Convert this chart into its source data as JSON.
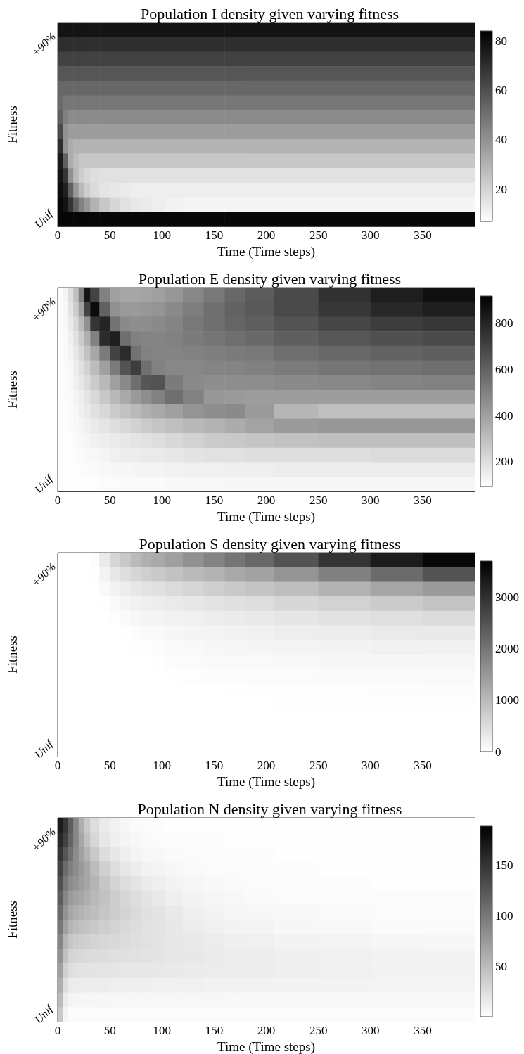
{
  "chart_data": [
    {
      "type": "heatmap",
      "title": "Population I density given varying fitness",
      "xlabel": "Time (Time steps)",
      "ylabel": "Fitness",
      "xlim": [
        0,
        400
      ],
      "xticks": [
        0,
        50,
        100,
        150,
        200,
        250,
        300,
        350
      ],
      "x": [
        2.5,
        7.5,
        12.5,
        17.5,
        22.5,
        27.5,
        35,
        45,
        55,
        65,
        75,
        85,
        95,
        110,
        130,
        150,
        170,
        190,
        225,
        275,
        325,
        375
      ],
      "y_categories": [
        null,
        "+90%",
        null,
        null,
        null,
        null,
        null,
        null,
        null,
        null,
        null,
        null,
        null,
        "Unif"
      ],
      "clim": [
        7,
        84
      ],
      "cticks": [
        20,
        40,
        60,
        80
      ],
      "cells": [
        [
          78,
          78,
          78,
          78,
          78,
          78,
          78,
          78,
          78,
          78,
          78,
          78,
          78,
          78,
          78,
          78,
          78,
          78,
          78,
          78,
          78,
          78
        ],
        [
          70,
          70,
          70,
          70,
          70,
          70,
          70,
          70,
          70,
          70,
          70,
          70,
          70,
          70,
          70,
          70,
          70,
          70,
          70,
          70,
          70,
          70
        ],
        [
          64,
          64,
          64,
          64,
          64,
          64,
          64,
          64,
          64,
          64,
          64,
          64,
          64,
          64,
          64,
          64,
          64,
          64,
          64,
          64,
          64,
          64
        ],
        [
          58,
          58,
          58,
          58,
          58,
          58,
          58,
          58,
          58,
          58,
          58,
          58,
          58,
          58,
          58,
          58,
          58,
          58,
          58,
          58,
          58,
          58
        ],
        [
          53,
          53,
          53,
          53,
          53,
          53,
          53,
          53,
          53,
          53,
          53,
          53,
          53,
          53,
          53,
          53,
          53,
          53,
          53,
          53,
          53,
          53
        ],
        [
          52,
          48,
          48,
          48,
          48,
          48,
          48,
          48,
          48,
          48,
          48,
          48,
          48,
          48,
          48,
          48,
          48,
          48,
          48,
          48,
          48,
          48
        ],
        [
          55,
          45,
          42,
          42,
          42,
          42,
          42,
          42,
          42,
          42,
          42,
          42,
          42,
          42,
          42,
          42,
          42,
          42,
          42,
          42,
          42,
          42
        ],
        [
          62,
          40,
          37,
          37,
          37,
          37,
          37,
          37,
          37,
          37,
          37,
          37,
          37,
          37,
          37,
          37,
          37,
          37,
          37,
          37,
          37,
          37
        ],
        [
          70,
          40,
          32,
          30,
          30,
          30,
          30,
          30,
          30,
          30,
          30,
          30,
          30,
          30,
          30,
          30,
          30,
          30,
          30,
          30,
          30,
          30
        ],
        [
          76,
          55,
          32,
          27,
          24,
          24,
          24,
          24,
          24,
          24,
          24,
          24,
          24,
          24,
          24,
          24,
          24,
          24,
          24,
          24,
          24,
          24
        ],
        [
          78,
          68,
          40,
          28,
          22,
          19,
          17,
          16,
          16,
          16,
          16,
          16,
          16,
          16,
          16,
          16,
          16,
          16,
          16,
          16,
          16,
          16
        ],
        [
          80,
          74,
          55,
          38,
          28,
          22,
          18,
          15,
          14,
          13,
          12,
          12,
          12,
          12,
          12,
          12,
          12,
          12,
          12,
          12,
          12,
          12
        ],
        [
          82,
          78,
          68,
          55,
          45,
          38,
          30,
          24,
          19,
          16,
          14,
          13,
          12,
          11,
          10,
          10,
          10,
          10,
          10,
          10,
          10,
          10
        ],
        [
          82,
          82,
          82,
          82,
          82,
          82,
          82,
          82,
          82,
          82,
          82,
          82,
          82,
          82,
          82,
          82,
          82,
          82,
          82,
          82,
          82,
          82
        ]
      ]
    },
    {
      "type": "heatmap",
      "title": "Population E density given varying fitness",
      "xlabel": "Time (Time steps)",
      "ylabel": "Fitness",
      "xlim": [
        0,
        400
      ],
      "xticks": [
        0,
        50,
        100,
        150,
        200,
        250,
        300,
        350
      ],
      "x": [
        2.5,
        7.5,
        12.5,
        17.5,
        22.5,
        27.5,
        35,
        45,
        55,
        65,
        75,
        85,
        95,
        110,
        130,
        150,
        170,
        190,
        225,
        275,
        325,
        375
      ],
      "y_categories": [
        null,
        "+90%",
        null,
        null,
        null,
        null,
        null,
        null,
        null,
        null,
        null,
        null,
        null,
        "Unif"
      ],
      "clim": [
        93,
        918
      ],
      "cticks": [
        200,
        400,
        600,
        800
      ],
      "cells": [
        [
          100,
          130,
          200,
          300,
          500,
          850,
          700,
          500,
          400,
          380,
          380,
          390,
          400,
          430,
          480,
          530,
          580,
          620,
          680,
          760,
          820,
          870
        ],
        [
          100,
          120,
          180,
          260,
          400,
          700,
          880,
          600,
          450,
          420,
          420,
          430,
          440,
          470,
          510,
          560,
          600,
          630,
          680,
          740,
          790,
          820
        ],
        [
          100,
          115,
          160,
          220,
          320,
          450,
          750,
          800,
          550,
          470,
          460,
          460,
          470,
          490,
          530,
          560,
          590,
          610,
          650,
          690,
          720,
          740
        ],
        [
          100,
          110,
          140,
          190,
          260,
          350,
          500,
          780,
          820,
          560,
          500,
          490,
          490,
          500,
          520,
          540,
          560,
          580,
          610,
          640,
          660,
          680
        ],
        [
          100,
          110,
          130,
          170,
          220,
          290,
          380,
          520,
          700,
          780,
          550,
          500,
          490,
          490,
          500,
          510,
          520,
          530,
          560,
          580,
          600,
          610
        ],
        [
          100,
          105,
          120,
          150,
          190,
          240,
          310,
          400,
          520,
          650,
          720,
          560,
          500,
          480,
          480,
          490,
          490,
          500,
          520,
          540,
          550,
          560
        ],
        [
          100,
          105,
          115,
          140,
          170,
          210,
          260,
          320,
          400,
          470,
          560,
          640,
          650,
          520,
          470,
          460,
          460,
          460,
          470,
          480,
          490,
          500
        ],
        [
          100,
          105,
          110,
          130,
          150,
          180,
          220,
          270,
          320,
          370,
          420,
          460,
          500,
          560,
          500,
          430,
          420,
          410,
          410,
          410,
          410,
          410
        ],
        [
          100,
          100,
          110,
          120,
          140,
          160,
          190,
          220,
          260,
          290,
          320,
          350,
          370,
          400,
          440,
          460,
          470,
          420,
          330,
          300,
          300,
          300
        ],
        [
          100,
          100,
          105,
          115,
          125,
          140,
          160,
          180,
          200,
          220,
          240,
          260,
          280,
          300,
          320,
          340,
          360,
          390,
          420,
          430,
          430,
          430
        ],
        [
          100,
          100,
          100,
          110,
          115,
          125,
          140,
          150,
          160,
          170,
          180,
          190,
          200,
          220,
          240,
          260,
          270,
          280,
          290,
          300,
          300,
          300
        ],
        [
          100,
          100,
          100,
          105,
          110,
          115,
          120,
          130,
          140,
          150,
          150,
          160,
          160,
          170,
          180,
          190,
          190,
          200,
          200,
          200,
          210,
          210
        ],
        [
          100,
          100,
          100,
          100,
          105,
          105,
          110,
          115,
          120,
          120,
          125,
          130,
          130,
          135,
          140,
          140,
          145,
          145,
          150,
          150,
          150,
          150
        ],
        [
          100,
          100,
          100,
          100,
          100,
          100,
          100,
          105,
          105,
          110,
          110,
          110,
          110,
          115,
          115,
          115,
          120,
          120,
          120,
          120,
          120,
          120
        ]
      ]
    },
    {
      "type": "heatmap",
      "title": "Population S density given varying fitness",
      "xlabel": "Time (Time steps)",
      "ylabel": "Fitness",
      "xlim": [
        0,
        400
      ],
      "xticks": [
        0,
        50,
        100,
        150,
        200,
        250,
        300,
        350
      ],
      "x": [
        2.5,
        7.5,
        12.5,
        17.5,
        22.5,
        27.5,
        35,
        45,
        55,
        65,
        75,
        85,
        95,
        110,
        130,
        150,
        170,
        190,
        225,
        275,
        325,
        375
      ],
      "y_categories": [
        null,
        "+90%",
        null,
        null,
        null,
        null,
        null,
        null,
        null,
        null,
        null,
        null,
        null,
        "Unif"
      ],
      "clim": [
        0,
        3700
      ],
      "cticks": [
        0,
        1000,
        2000,
        3000
      ],
      "cells": [
        [
          0,
          0,
          0,
          0,
          0,
          0,
          50,
          300,
          600,
          800,
          1000,
          1150,
          1250,
          1400,
          1600,
          1800,
          2000,
          2200,
          2500,
          2950,
          3300,
          3600
        ],
        [
          0,
          0,
          0,
          0,
          0,
          0,
          20,
          180,
          350,
          480,
          600,
          700,
          780,
          880,
          1000,
          1100,
          1250,
          1350,
          1550,
          1850,
          2150,
          2500
        ],
        [
          0,
          0,
          0,
          0,
          0,
          0,
          0,
          80,
          180,
          270,
          350,
          400,
          450,
          520,
          600,
          700,
          780,
          850,
          950,
          1100,
          1300,
          1450
        ],
        [
          0,
          0,
          0,
          0,
          0,
          0,
          0,
          20,
          80,
          140,
          190,
          230,
          260,
          300,
          350,
          400,
          450,
          500,
          580,
          650,
          750,
          850
        ],
        [
          0,
          0,
          0,
          0,
          0,
          0,
          0,
          0,
          30,
          70,
          110,
          140,
          160,
          190,
          220,
          260,
          290,
          320,
          370,
          420,
          470,
          520
        ],
        [
          0,
          0,
          0,
          0,
          0,
          0,
          0,
          0,
          0,
          20,
          50,
          70,
          90,
          110,
          140,
          160,
          190,
          210,
          240,
          270,
          300,
          320
        ],
        [
          0,
          0,
          0,
          0,
          0,
          0,
          0,
          0,
          0,
          0,
          15,
          35,
          50,
          70,
          90,
          110,
          130,
          140,
          160,
          180,
          200,
          210
        ],
        [
          0,
          0,
          0,
          0,
          0,
          0,
          0,
          0,
          0,
          0,
          0,
          0,
          20,
          40,
          55,
          70,
          80,
          90,
          100,
          110,
          120,
          130
        ],
        [
          0,
          0,
          0,
          0,
          0,
          0,
          0,
          0,
          0,
          0,
          0,
          0,
          0,
          10,
          25,
          40,
          50,
          55,
          65,
          70,
          75,
          80
        ],
        [
          0,
          0,
          0,
          0,
          0,
          0,
          0,
          0,
          0,
          0,
          0,
          0,
          0,
          0,
          0,
          0,
          10,
          20,
          30,
          35,
          40,
          40
        ],
        [
          0,
          0,
          0,
          0,
          0,
          0,
          0,
          0,
          0,
          0,
          0,
          0,
          0,
          0,
          0,
          0,
          0,
          0,
          10,
          15,
          20,
          20
        ],
        [
          0,
          0,
          0,
          0,
          0,
          0,
          0,
          0,
          0,
          0,
          0,
          0,
          0,
          0,
          0,
          0,
          0,
          0,
          0,
          0,
          0,
          0
        ],
        [
          0,
          0,
          0,
          0,
          0,
          0,
          0,
          0,
          0,
          0,
          0,
          0,
          0,
          0,
          0,
          0,
          0,
          0,
          0,
          0,
          0,
          0
        ],
        [
          0,
          0,
          0,
          0,
          0,
          0,
          0,
          0,
          0,
          0,
          0,
          0,
          0,
          0,
          0,
          0,
          0,
          0,
          0,
          0,
          0,
          0
        ]
      ]
    },
    {
      "type": "heatmap",
      "title": "Population N density given varying fitness",
      "xlabel": "Time (Time steps)",
      "ylabel": "Fitness",
      "xlim": [
        0,
        400
      ],
      "xticks": [
        0,
        50,
        100,
        150,
        200,
        250,
        300,
        350
      ],
      "x": [
        2.5,
        7.5,
        12.5,
        17.5,
        22.5,
        27.5,
        35,
        45,
        55,
        65,
        75,
        85,
        95,
        110,
        130,
        150,
        170,
        190,
        225,
        275,
        325,
        375
      ],
      "y_categories": [
        null,
        "+90%",
        null,
        null,
        null,
        null,
        null,
        null,
        null,
        null,
        null,
        null,
        null,
        "Unif"
      ],
      "clim": [
        0,
        189
      ],
      "cticks": [
        50,
        100,
        150
      ],
      "cells": [
        [
          170,
          150,
          120,
          90,
          60,
          40,
          25,
          15,
          10,
          6,
          4,
          3,
          2,
          1,
          1,
          1,
          1,
          1,
          1,
          1,
          1,
          1
        ],
        [
          160,
          140,
          115,
          90,
          65,
          45,
          30,
          18,
          12,
          8,
          5,
          4,
          3,
          2,
          2,
          2,
          1,
          1,
          1,
          1,
          1,
          1
        ],
        [
          150,
          125,
          105,
          85,
          70,
          55,
          40,
          25,
          17,
          12,
          8,
          6,
          5,
          4,
          3,
          2,
          2,
          2,
          1,
          1,
          1,
          1
        ],
        [
          140,
          110,
          95,
          85,
          75,
          65,
          50,
          35,
          25,
          18,
          13,
          10,
          8,
          6,
          4,
          3,
          3,
          2,
          2,
          1,
          1,
          1
        ],
        [
          130,
          100,
          85,
          80,
          72,
          65,
          55,
          42,
          32,
          25,
          20,
          15,
          12,
          9,
          7,
          5,
          4,
          3,
          2,
          2,
          1,
          1
        ],
        [
          120,
          90,
          75,
          70,
          65,
          60,
          52,
          45,
          37,
          30,
          25,
          20,
          16,
          12,
          9,
          7,
          5,
          4,
          3,
          2,
          2,
          2
        ],
        [
          110,
          80,
          65,
          60,
          56,
          52,
          48,
          42,
          37,
          32,
          27,
          23,
          20,
          16,
          12,
          9,
          7,
          6,
          5,
          4,
          3,
          3
        ],
        [
          100,
          70,
          55,
          50,
          47,
          44,
          40,
          36,
          32,
          28,
          25,
          22,
          20,
          17,
          14,
          11,
          9,
          8,
          6,
          5,
          4,
          4
        ],
        [
          90,
          55,
          42,
          38,
          36,
          34,
          32,
          30,
          28,
          26,
          24,
          22,
          20,
          18,
          16,
          14,
          12,
          11,
          9,
          8,
          7,
          6
        ],
        [
          80,
          45,
          32,
          30,
          28,
          27,
          26,
          25,
          24,
          23,
          22,
          21,
          20,
          18,
          17,
          15,
          14,
          13,
          12,
          11,
          10,
          9
        ],
        [
          70,
          35,
          25,
          22,
          21,
          20,
          20,
          19,
          19,
          18,
          18,
          17,
          17,
          16,
          15,
          14,
          14,
          13,
          12,
          11,
          10,
          10
        ],
        [
          60,
          25,
          15,
          14,
          13,
          13,
          13,
          13,
          12,
          12,
          12,
          12,
          11,
          11,
          11,
          10,
          10,
          10,
          9,
          9,
          8,
          8
        ],
        [
          50,
          15,
          8,
          7,
          7,
          7,
          7,
          7,
          6,
          6,
          6,
          6,
          6,
          6,
          6,
          6,
          5,
          5,
          5,
          5,
          5,
          5
        ],
        [
          40,
          8,
          3,
          3,
          3,
          3,
          3,
          3,
          3,
          3,
          3,
          3,
          3,
          3,
          3,
          3,
          3,
          3,
          3,
          3,
          3,
          3
        ]
      ]
    }
  ]
}
